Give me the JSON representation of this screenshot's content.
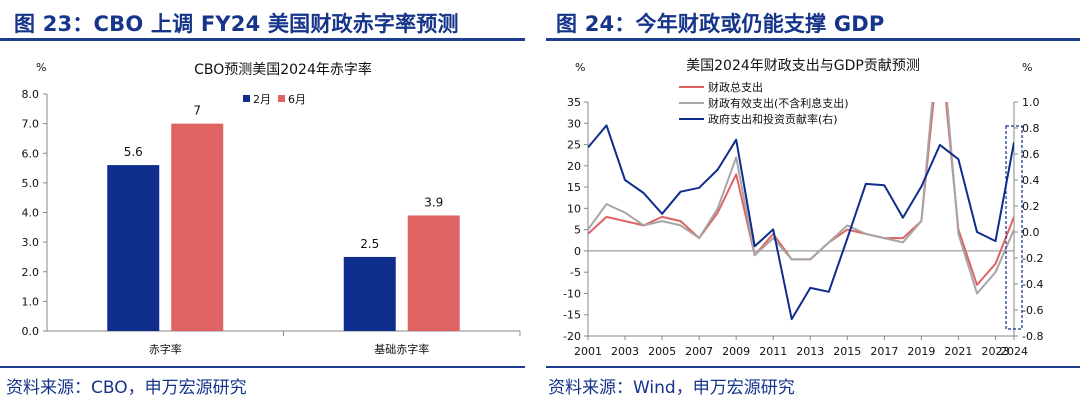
{
  "left": {
    "title": "图 23：CBO 上调 FY24 美国财政赤字率预测",
    "source": "资料来源：CBO，申万宏源研究",
    "chart_data": {
      "type": "bar",
      "title": "CBO预测美国2024年赤字率",
      "ylabel": "%",
      "ylim": [
        0,
        8
      ],
      "yticks": [
        "0.0",
        "1.0",
        "2.0",
        "3.0",
        "4.0",
        "5.0",
        "6.0",
        "7.0",
        "8.0"
      ],
      "categories": [
        "赤字率",
        "基础赤字率"
      ],
      "series": [
        {
          "name": "2月",
          "color": "#0f2d8c",
          "values": [
            5.6,
            2.5
          ],
          "labels": [
            "5.6",
            "2.5"
          ]
        },
        {
          "name": "6月",
          "color": "#e06363",
          "values": [
            7,
            3.9
          ],
          "labels": [
            "7",
            "3.9"
          ]
        }
      ],
      "legend": "top-right",
      "grid": false
    }
  },
  "right": {
    "title": "图 24：今年财政或仍能支撑 GDP",
    "source": "资料来源：Wind，申万宏源研究",
    "chart_data": {
      "type": "line",
      "title": "美国2024年财政支出与GDP贡献预测",
      "ylabel_left": "%",
      "ylabel_right": "%",
      "ylim_left": [
        -20,
        35
      ],
      "ylim_right": [
        -0.8,
        1.0
      ],
      "yticks_left": [
        "-20",
        "-15",
        "-10",
        "-5",
        "0",
        "5",
        "10",
        "15",
        "20",
        "25",
        "30",
        "35"
      ],
      "yticks_right": [
        "-0.8",
        "-0.6",
        "-0.4",
        "-0.2",
        "0.0",
        "0.2",
        "0.4",
        "0.6",
        "0.8",
        "1.0"
      ],
      "xticks": [
        "2001",
        "2003",
        "2005",
        "2007",
        "2009",
        "2011",
        "2013",
        "2015",
        "2017",
        "2019",
        "2021",
        "2023",
        "2024"
      ],
      "x": [
        2001,
        2002,
        2003,
        2004,
        2005,
        2006,
        2007,
        2008,
        2009,
        2010,
        2011,
        2012,
        2013,
        2014,
        2015,
        2016,
        2017,
        2018,
        2019,
        2020,
        2021,
        2022,
        2023,
        2024
      ],
      "series": [
        {
          "name": "财政总支出",
          "axis": "left",
          "color": "#e06363",
          "values": [
            4,
            8,
            7,
            6,
            8,
            7,
            3,
            9,
            18,
            -1,
            4,
            -2,
            -2,
            2,
            5,
            4,
            3,
            3,
            7,
            50,
            5,
            -8,
            -3,
            8
          ]
        },
        {
          "name": "财政有效支出(不含利息支出)",
          "axis": "left",
          "color": "#a6a6a6",
          "values": [
            5,
            11,
            9,
            6,
            7,
            6,
            3,
            10,
            22,
            -1,
            3,
            -2,
            -2,
            2,
            6,
            4,
            3,
            2,
            7,
            55,
            4,
            -10,
            -5,
            5
          ]
        },
        {
          "name": "政府支出和投资贡献率(右)",
          "axis": "right",
          "color": "#0f2d8c",
          "values": [
            0.65,
            0.82,
            0.4,
            0.3,
            0.14,
            0.31,
            0.34,
            0.48,
            0.71,
            -0.11,
            0.02,
            -0.67,
            -0.43,
            -0.46,
            -0.05,
            0.37,
            0.36,
            0.11,
            0.35,
            0.67,
            0.56,
            0.0,
            -0.07,
            0.69
          ]
        }
      ],
      "highlight": "2024",
      "legend": "top-left",
      "grid": false
    }
  }
}
